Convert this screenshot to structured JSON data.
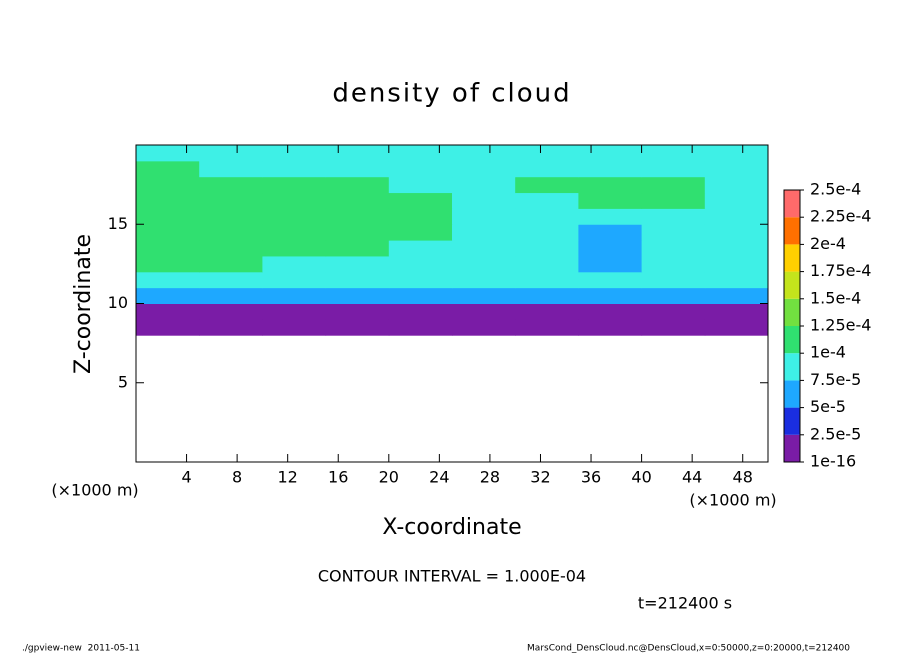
{
  "chart_data": {
    "type": "heatmap",
    "title": "density of cloud",
    "xlabel": "X-coordinate",
    "ylabel": "Z-coordinate",
    "xunit": "(×1000 m)",
    "yunit": "(×1000 m)",
    "xlim": [
      0,
      50
    ],
    "ylim": [
      0,
      20
    ],
    "xticks": [
      4,
      8,
      12,
      16,
      20,
      24,
      28,
      32,
      36,
      40,
      44,
      48
    ],
    "yticks": [
      5,
      10,
      15
    ],
    "x_edges": [
      0,
      5,
      10,
      15,
      20,
      25,
      30,
      35,
      40,
      45,
      50
    ],
    "z_edges": [
      8,
      9,
      10,
      11,
      12,
      13,
      14,
      15,
      16,
      17,
      18,
      19,
      20
    ],
    "values": [
      [
        1e-06,
        1e-06,
        1e-06,
        1e-06,
        1e-06,
        1e-06,
        1e-06,
        1e-06,
        1e-06,
        1e-06
      ],
      [
        2e-05,
        2e-05,
        1.5e-05,
        2e-05,
        2e-05,
        2e-05,
        2e-05,
        2e-05,
        2e-05,
        2e-05
      ],
      [
        6e-05,
        6e-05,
        5.5e-05,
        6e-05,
        6e-05,
        6e-05,
        6e-05,
        6e-05,
        5e-05,
        6e-05
      ],
      [
        8.5e-05,
        8.5e-05,
        8e-05,
        8e-05,
        8.5e-05,
        8e-05,
        8e-05,
        8e-05,
        8e-05,
        8.5e-05
      ],
      [
        0.000105,
        0.000105,
        9.5e-05,
        9.5e-05,
        9e-05,
        8.5e-05,
        8e-05,
        6.5e-05,
        8.5e-05,
        9.5e-05
      ],
      [
        0.000115,
        0.000115,
        0.00011,
        0.000105,
        9.5e-05,
        8.5e-05,
        8e-05,
        6e-05,
        8e-05,
        9e-05
      ],
      [
        0.00012,
        0.00012,
        0.00012,
        0.00011,
        0.0001,
        9e-05,
        8e-05,
        7e-05,
        8.5e-05,
        9e-05
      ],
      [
        0.00012,
        0.00012,
        0.00012,
        0.00011,
        0.000105,
        9e-05,
        8e-05,
        8.5e-05,
        9e-05,
        9.5e-05
      ],
      [
        0.000115,
        0.00012,
        0.000115,
        0.00011,
        0.0001,
        9e-05,
        9e-05,
        0.000105,
        0.0001,
        9e-05
      ],
      [
        0.00011,
        0.00011,
        0.000105,
        0.0001,
        9e-05,
        8.5e-05,
        0.0001,
        0.00011,
        0.000105,
        9e-05
      ],
      [
        0.0001,
        9.5e-05,
        9e-05,
        8.5e-05,
        8e-05,
        8e-05,
        8.5e-05,
        9e-05,
        9e-05,
        8.5e-05
      ],
      [
        9e-05,
        8.5e-05,
        8e-05,
        7.5e-05,
        7.5e-05,
        7.5e-05,
        8e-05,
        8e-05,
        8e-05,
        8e-05
      ]
    ],
    "levels": [
      {
        "value": 1e-16,
        "label": "1e-16"
      },
      {
        "value": 2.5e-05,
        "label": "2.5e-5"
      },
      {
        "value": 5e-05,
        "label": "5e-5"
      },
      {
        "value": 7.5e-05,
        "label": "7.5e-5"
      },
      {
        "value": 0.0001,
        "label": "1e-4"
      },
      {
        "value": 0.000125,
        "label": "1.25e-4"
      },
      {
        "value": 0.00015,
        "label": "1.5e-4"
      },
      {
        "value": 0.000175,
        "label": "1.75e-4"
      },
      {
        "value": 0.0002,
        "label": "2e-4"
      },
      {
        "value": 0.000225,
        "label": "2.25e-4"
      },
      {
        "value": 0.00025,
        "label": "2.5e-4"
      }
    ],
    "colors": [
      "#7a1ca6",
      "#1a2ee0",
      "#1ea8ff",
      "#3ef0e6",
      "#30e070",
      "#72e040",
      "#c4e41c",
      "#ffd000",
      "#ff7000",
      "#ff6a6a"
    ],
    "annotations": [
      "CONTOUR INTERVAL = 1.000E-04",
      "t=212400 s"
    ],
    "footer_left": "./gpview-new  2011-05-11",
    "footer_right": "MarsCond_DensCloud.nc@DensCloud,x=0:50000,z=0:20000,t=212400"
  }
}
